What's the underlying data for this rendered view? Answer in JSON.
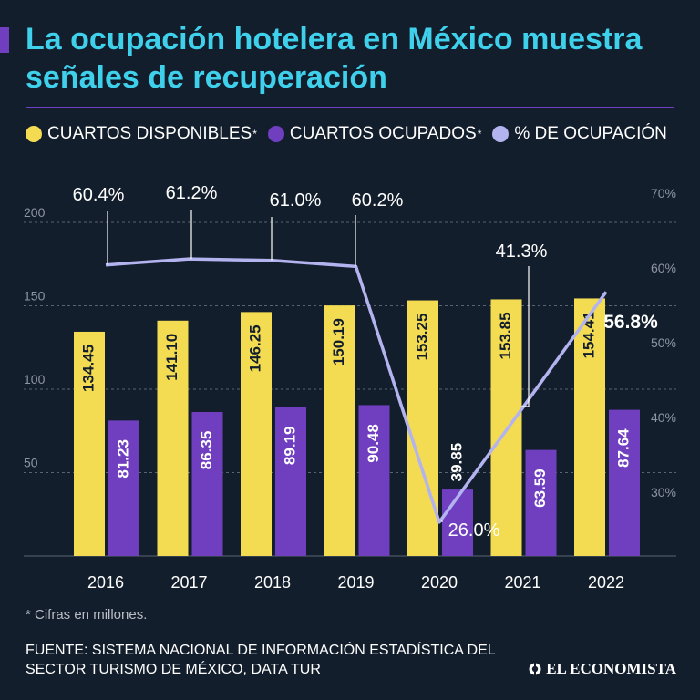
{
  "title": "La ocupación hotelera en México muestra señales de recuperación",
  "colors": {
    "background": "#131e2c",
    "title": "#3fd0ec",
    "accent": "#6f3fc0",
    "available": "#f3dc52",
    "occupied": "#6f3fc0",
    "occupancy_line": "#b3b3f0"
  },
  "legend": {
    "available": "CUARTOS DISPONIBLES",
    "available_mark": "*",
    "occupied": "CUARTOS OCUPADOS",
    "occupied_mark": "*",
    "occupancy": "% DE OCUPACIÓN"
  },
  "chart_data": {
    "type": "bar",
    "categories": [
      "2016",
      "2017",
      "2018",
      "2019",
      "2020",
      "2021",
      "2022"
    ],
    "series": [
      {
        "name": "CUARTOS DISPONIBLES",
        "values": [
          134.45,
          141.1,
          146.25,
          150.19,
          153.25,
          153.85,
          154.41
        ],
        "labels": [
          "134.45",
          "141.10",
          "146.25",
          "150.19",
          "153.25",
          "153.85",
          "154.41"
        ]
      },
      {
        "name": "CUARTOS OCUPADOS",
        "values": [
          81.23,
          86.35,
          89.19,
          90.48,
          39.85,
          63.59,
          87.64
        ],
        "labels": [
          "81.23",
          "86.35",
          "89.19",
          "90.48",
          "39.85",
          "63.59",
          "87.64"
        ]
      },
      {
        "name": "% DE OCUPACIÓN",
        "type": "line",
        "axis": "right",
        "values": [
          60.4,
          61.2,
          61.0,
          60.2,
          26.0,
          41.3,
          56.8
        ],
        "labels": [
          "60.4%",
          "61.2%",
          "61.0%",
          "60.2%",
          "26.0%",
          "41.3%",
          "56.8%"
        ]
      }
    ],
    "y_left": {
      "ticks": [
        "200",
        "150",
        "100",
        "50"
      ],
      "tick_values": [
        200,
        150,
        100,
        50
      ],
      "range": [
        0,
        200
      ]
    },
    "y_right": {
      "ticks": [
        "70%",
        "60%",
        "50%",
        "40%",
        "30%"
      ],
      "tick_values": [
        70,
        60,
        50,
        40,
        30
      ],
      "range": [
        20,
        70
      ]
    },
    "grid": true
  },
  "footnote": "* Cifras en millones.",
  "source": "FUENTE: SISTEMA NACIONAL DE INFORMACIÓN ESTADÍSTICA DEL SECTOR TURISMO DE MÉXICO, DATA TUR",
  "brand": "EL ECONOMISTA",
  "brand_icon": "el-economista-logo-icon"
}
